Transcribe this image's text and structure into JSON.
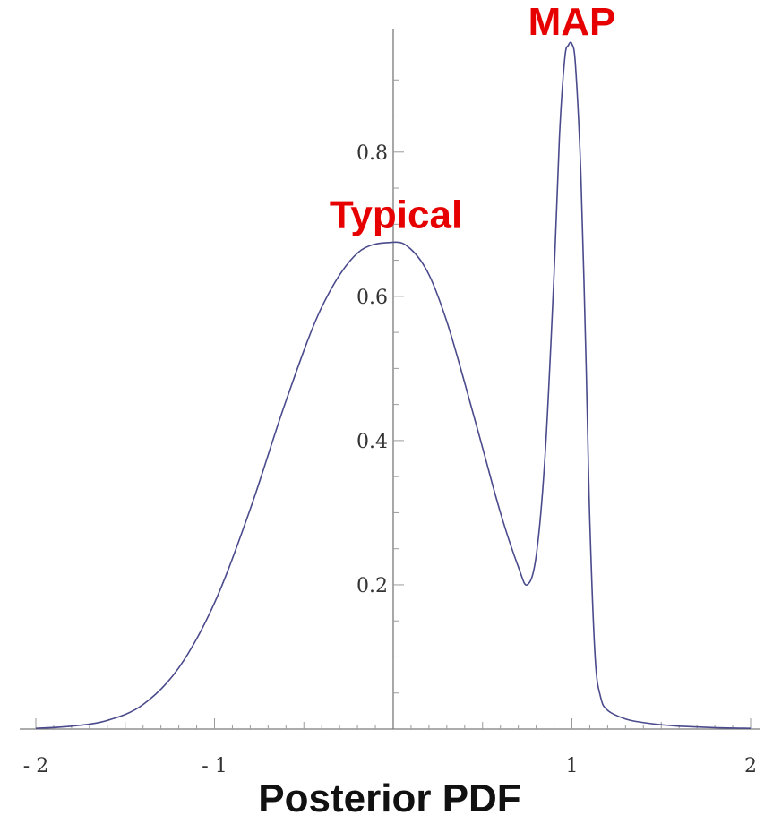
{
  "chart_data": {
    "type": "line",
    "title": "",
    "xlabel": "Posterior PDF",
    "ylabel": "",
    "xlim": [
      -2,
      2
    ],
    "ylim": [
      0,
      0.95
    ],
    "x_ticks": [
      -2,
      -1,
      1,
      2
    ],
    "x_tick_labels": [
      "- 2",
      "- 1",
      "1",
      "2"
    ],
    "y_ticks": [
      0.2,
      0.4,
      0.6,
      0.8
    ],
    "y_tick_labels": [
      "0.2",
      "0.4",
      "0.6",
      "0.8"
    ],
    "grid": false,
    "line_color": "#4a4a8c",
    "series": [
      {
        "x": [
          -2.0,
          -1.8,
          -1.6,
          -1.4,
          -1.2,
          -1.0,
          -0.8,
          -0.6,
          -0.4,
          -0.2,
          0.0,
          0.1,
          0.2,
          0.3,
          0.4,
          0.5,
          0.6,
          0.7,
          0.75,
          0.8,
          0.85,
          0.9,
          0.93,
          0.96,
          0.98,
          1.0,
          1.02,
          1.05,
          1.08,
          1.1,
          1.13,
          1.16,
          1.2,
          1.3,
          1.4,
          1.5,
          1.6,
          1.8,
          2.0
        ],
        "y": [
          0.001,
          0.004,
          0.012,
          0.034,
          0.085,
          0.175,
          0.305,
          0.455,
          0.585,
          0.66,
          0.675,
          0.665,
          0.63,
          0.565,
          0.48,
          0.39,
          0.3,
          0.225,
          0.2,
          0.24,
          0.38,
          0.63,
          0.82,
          0.93,
          0.948,
          0.95,
          0.92,
          0.77,
          0.5,
          0.29,
          0.1,
          0.045,
          0.026,
          0.014,
          0.009,
          0.006,
          0.004,
          0.002,
          0.001
        ]
      }
    ],
    "annotations": [
      {
        "text": "MAP",
        "x": 1.0,
        "y": 0.95,
        "color": "#e60000"
      },
      {
        "text": "Typical",
        "x": 0.0,
        "y": 0.675,
        "color": "#e60000"
      }
    ]
  }
}
